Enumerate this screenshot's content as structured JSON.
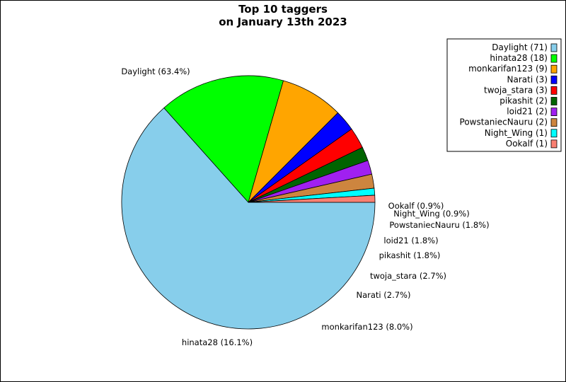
{
  "chart_data": {
    "type": "pie",
    "title_lines": [
      "Top 10 taggers",
      "on January 13th 2023"
    ],
    "slices": [
      {
        "name": "Daylight",
        "value": 71,
        "percent": "63.4%",
        "color": "#87ceeb"
      },
      {
        "name": "hinata28",
        "value": 18,
        "percent": "16.1%",
        "color": "#00ff00"
      },
      {
        "name": "monkarifan123",
        "value": 9,
        "percent": "8.0%",
        "color": "#ffa500"
      },
      {
        "name": "Narati",
        "value": 3,
        "percent": "2.7%",
        "color": "#0000ff"
      },
      {
        "name": "twoja_stara",
        "value": 3,
        "percent": "2.7%",
        "color": "#ff0000"
      },
      {
        "name": "pikashit",
        "value": 2,
        "percent": "1.8%",
        "color": "#006400"
      },
      {
        "name": "loid21",
        "value": 2,
        "percent": "1.8%",
        "color": "#a020f0"
      },
      {
        "name": "PowstaniecNauru",
        "value": 2,
        "percent": "1.8%",
        "color": "#cd853f"
      },
      {
        "name": "Night_Wing",
        "value": 1,
        "percent": "0.9%",
        "color": "#00ffff"
      },
      {
        "name": "Ookalf",
        "value": 1,
        "percent": "0.9%",
        "color": "#fa8072"
      }
    ],
    "start_angle_deg": 0,
    "direction": "clockwise",
    "legend_position": "top-right"
  }
}
